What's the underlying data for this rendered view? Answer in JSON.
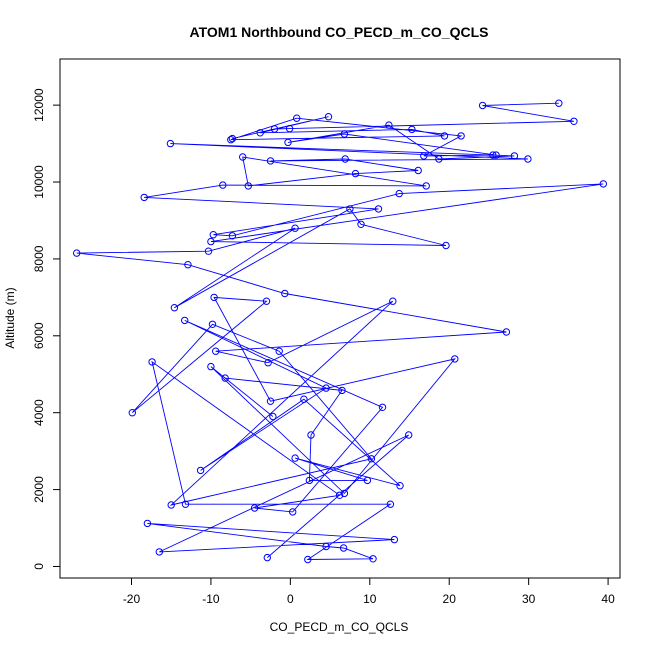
{
  "chart_data": {
    "type": "line",
    "title": "ATOM1 Northbound CO_PECD_m_CO_QCLS",
    "xlabel": "CO_PECD_m_CO_QCLS",
    "ylabel": "Altitude (m)",
    "xlim": [
      -29,
      41.5
    ],
    "ylim": [
      -300,
      13200
    ],
    "xticks": [
      -20,
      -10,
      0,
      10,
      20,
      30,
      40
    ],
    "yticks": [
      0,
      2000,
      4000,
      6000,
      8000,
      10000,
      12000
    ],
    "xtick_labels": [
      "-20",
      "-10",
      "0",
      "10",
      "20",
      "30",
      "40"
    ],
    "ytick_labels": [
      "0",
      "2000",
      "4000",
      "6000",
      "8000",
      "10000",
      "12000"
    ],
    "grid": false,
    "series": [
      {
        "color": "#0000ff",
        "marker": "open-circle",
        "x": [
          -2.9,
          14.9,
          -16.5,
          13.1,
          -18.0,
          4.5,
          6.7,
          10.4,
          2.2,
          12.6,
          -13.2,
          -17.4,
          6.2,
          -4.5,
          0.3,
          11.6,
          -13.3,
          4.5,
          -11.3,
          1.7,
          13.8,
          0.6,
          9.7,
          2.4,
          2.6,
          6.5,
          -8.2,
          -2.2,
          -10.0,
          6.8,
          20.7,
          -2.5,
          -9.6,
          -3.0,
          -19.9,
          -9.8,
          -1.4,
          10.2,
          -15.0,
          12.9,
          -2.8,
          -9.4,
          27.2,
          -0.7,
          -12.9,
          -26.9,
          -10.3,
          0.6,
          -14.6,
          7.5,
          8.9,
          19.6,
          -10.0,
          39.4,
          13.7,
          -7.3,
          -9.7,
          11.1,
          -18.4,
          -8.5,
          17.1,
          -6.0,
          -5.3,
          8.2,
          16.1,
          6.9,
          -2.5,
          29.9,
          -15.1,
          25.5,
          28.2,
          18.7,
          12.4,
          -0.3,
          6.8,
          25.9,
          16.8,
          21.5,
          0.8,
          -7.5,
          19.4,
          15.3,
          -3.8,
          4.8,
          -7.3,
          -2.0,
          -0.1,
          35.7,
          24.2,
          33.8
        ],
        "y": [
          230,
          3420,
          380,
          700,
          1120,
          520,
          480,
          200,
          180,
          1620,
          1620,
          5320,
          1850,
          1520,
          1420,
          4140,
          6400,
          4640,
          2500,
          4350,
          2100,
          2820,
          2240,
          2240,
          3420,
          4580,
          4900,
          3900,
          5200,
          1900,
          5400,
          4300,
          7000,
          6900,
          4000,
          6300,
          5600,
          2800,
          1600,
          6900,
          5300,
          5600,
          6100,
          7100,
          7850,
          8150,
          8200,
          8800,
          6730,
          9300,
          8900,
          8350,
          8450,
          9950,
          9700,
          8600,
          8630,
          9300,
          9600,
          9920,
          9900,
          10650,
          9900,
          10220,
          10300,
          10600,
          10550,
          10600,
          11000,
          10700,
          10680,
          10600,
          11480,
          11030,
          11250,
          10700,
          10680,
          11200,
          11660,
          11100,
          11200,
          11370,
          11280,
          11700,
          11130,
          11380,
          11390,
          11580,
          11990,
          12050
        ]
      }
    ]
  }
}
